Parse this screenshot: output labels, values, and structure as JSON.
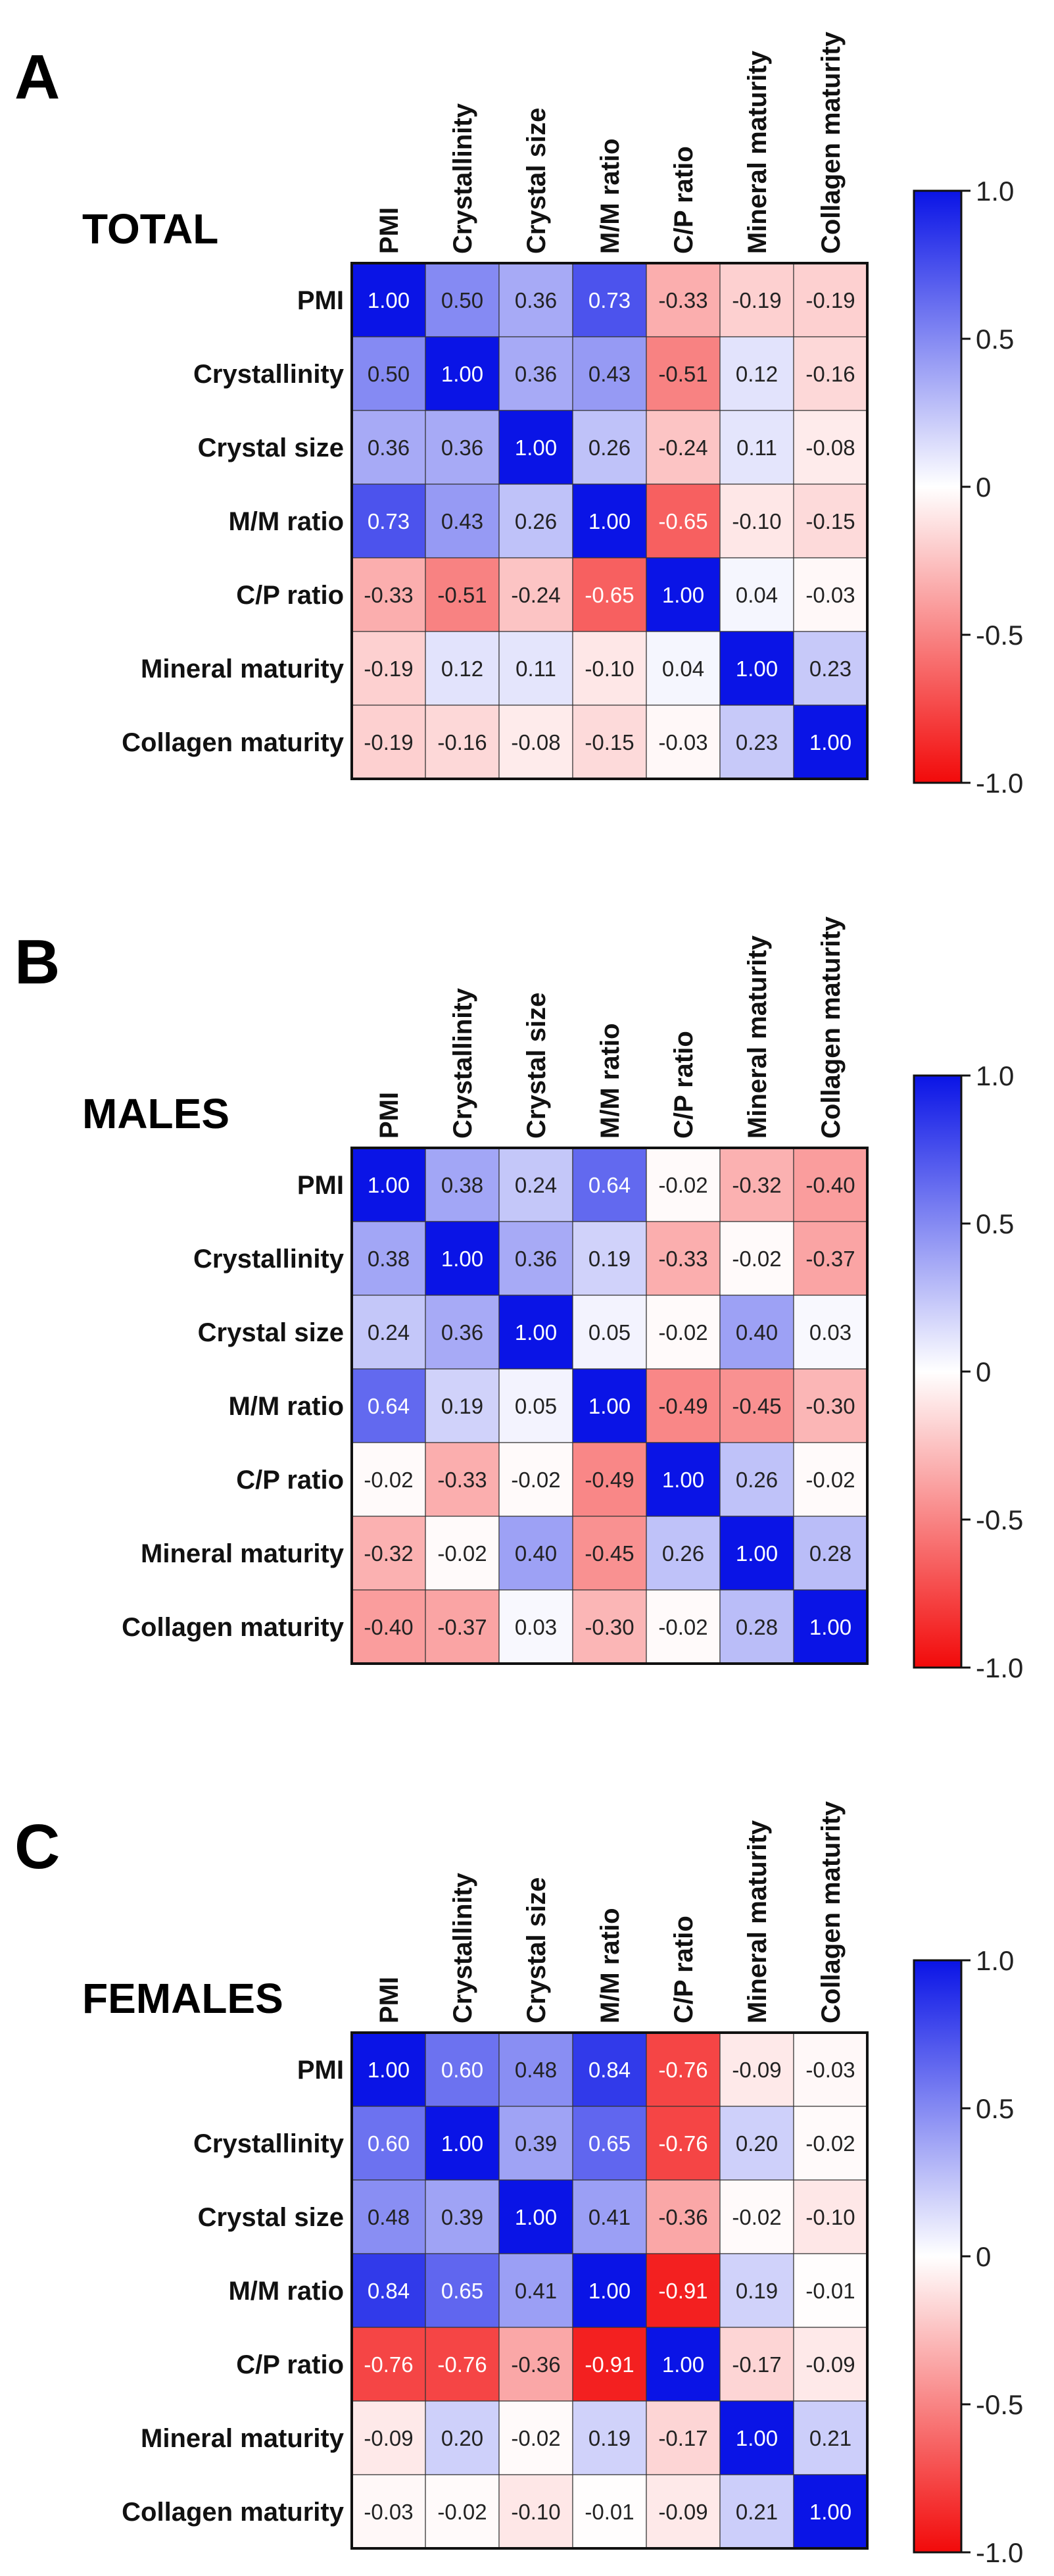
{
  "figure": {
    "description": "Correlation heatmaps of bone mineral/collagen parameters",
    "colors": {
      "positive": "#0a14e6",
      "zero": "#ffffff",
      "negative": "#f20a0a"
    }
  },
  "chart_data": [
    {
      "type": "heatmap",
      "panel": "A",
      "title": "TOTAL",
      "rows": [
        "PMI",
        "Crystallinity",
        "Crystal size",
        "M/M ratio",
        "C/P ratio",
        "Mineral maturity",
        "Collagen maturity"
      ],
      "columns": [
        "PMI",
        "Crystallinity",
        "Crystal size",
        "M/M ratio",
        "C/P ratio",
        "Mineral maturity",
        "Collagen maturity"
      ],
      "values": [
        [
          1.0,
          0.5,
          0.36,
          0.73,
          -0.33,
          -0.19,
          -0.19
        ],
        [
          0.5,
          1.0,
          0.36,
          0.43,
          -0.51,
          0.12,
          -0.16
        ],
        [
          0.36,
          0.36,
          1.0,
          0.26,
          -0.24,
          0.11,
          -0.08
        ],
        [
          0.73,
          0.43,
          0.26,
          1.0,
          -0.65,
          -0.1,
          -0.15
        ],
        [
          -0.33,
          -0.51,
          -0.24,
          -0.65,
          1.0,
          0.04,
          -0.03
        ],
        [
          -0.19,
          0.12,
          0.11,
          -0.1,
          0.04,
          1.0,
          0.23
        ],
        [
          -0.19,
          -0.16,
          -0.08,
          -0.15,
          -0.03,
          0.23,
          1.0
        ]
      ],
      "vlim": [
        -1.0,
        1.0
      ],
      "colorbar_ticks": [
        "1.0",
        "0.5",
        "0",
        "-0.5",
        "-1.0"
      ]
    },
    {
      "type": "heatmap",
      "panel": "B",
      "title": "MALES",
      "rows": [
        "PMI",
        "Crystallinity",
        "Crystal size",
        "M/M ratio",
        "C/P ratio",
        "Mineral maturity",
        "Collagen maturity"
      ],
      "columns": [
        "PMI",
        "Crystallinity",
        "Crystal size",
        "M/M ratio",
        "C/P ratio",
        "Mineral maturity",
        "Collagen maturity"
      ],
      "values": [
        [
          1.0,
          0.38,
          0.24,
          0.64,
          -0.02,
          -0.32,
          -0.4
        ],
        [
          0.38,
          1.0,
          0.36,
          0.19,
          -0.33,
          -0.02,
          -0.37
        ],
        [
          0.24,
          0.36,
          1.0,
          0.05,
          -0.02,
          0.4,
          0.03
        ],
        [
          0.64,
          0.19,
          0.05,
          1.0,
          -0.49,
          -0.45,
          -0.3
        ],
        [
          -0.02,
          -0.33,
          -0.02,
          -0.49,
          1.0,
          0.26,
          -0.02
        ],
        [
          -0.32,
          -0.02,
          0.4,
          -0.45,
          0.26,
          1.0,
          0.28
        ],
        [
          -0.4,
          -0.37,
          0.03,
          -0.3,
          -0.02,
          0.28,
          1.0
        ]
      ],
      "vlim": [
        -1.0,
        1.0
      ],
      "colorbar_ticks": [
        "1.0",
        "0.5",
        "0",
        "-0.5",
        "-1.0"
      ]
    },
    {
      "type": "heatmap",
      "panel": "C",
      "title": "FEMALES",
      "rows": [
        "PMI",
        "Crystallinity",
        "Crystal size",
        "M/M ratio",
        "C/P ratio",
        "Mineral maturity",
        "Collagen maturity"
      ],
      "columns": [
        "PMI",
        "Crystallinity",
        "Crystal size",
        "M/M ratio",
        "C/P ratio",
        "Mineral maturity",
        "Collagen maturity"
      ],
      "values": [
        [
          1.0,
          0.6,
          0.48,
          0.84,
          -0.76,
          -0.09,
          -0.03
        ],
        [
          0.6,
          1.0,
          0.39,
          0.65,
          -0.76,
          0.2,
          -0.02
        ],
        [
          0.48,
          0.39,
          1.0,
          0.41,
          -0.36,
          -0.02,
          -0.1
        ],
        [
          0.84,
          0.65,
          0.41,
          1.0,
          -0.91,
          0.19,
          -0.01
        ],
        [
          -0.76,
          -0.76,
          -0.36,
          -0.91,
          1.0,
          -0.17,
          -0.09
        ],
        [
          -0.09,
          0.2,
          -0.02,
          0.19,
          -0.17,
          1.0,
          0.21
        ],
        [
          -0.03,
          -0.02,
          -0.1,
          -0.01,
          -0.09,
          0.21,
          1.0
        ]
      ],
      "vlim": [
        -1.0,
        1.0
      ],
      "colorbar_ticks": [
        "1.0",
        "0.5",
        "0",
        "-0.5",
        "-1.0"
      ]
    }
  ]
}
